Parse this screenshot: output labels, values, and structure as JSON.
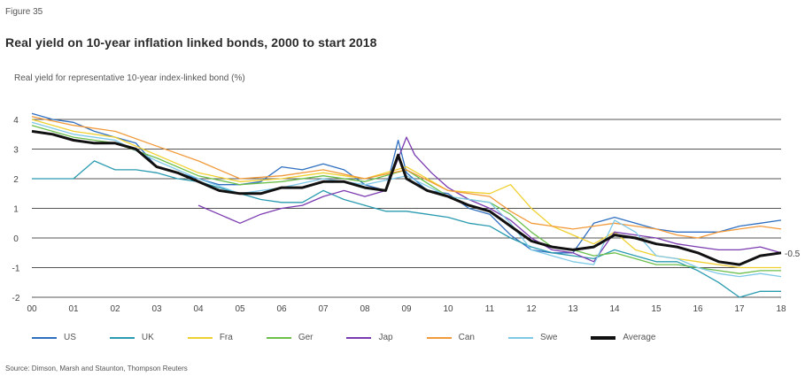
{
  "figure_label": "Figure 35",
  "source": "Source: Dimson, Marsh and Staunton, Thompson Reuters",
  "chart_data": {
    "type": "line",
    "title": "Real yield on 10-year inflation linked bonds, 2000 to start 2018",
    "ylabel": "Real yield for representative 10-year index-linked bond (%)",
    "xlabel": "",
    "xlim": [
      2000,
      2018
    ],
    "ylim": [
      -2,
      4
    ],
    "x_ticks": [
      "00",
      "01",
      "02",
      "03",
      "04",
      "05",
      "06",
      "07",
      "08",
      "09",
      "10",
      "11",
      "12",
      "13",
      "14",
      "15",
      "16",
      "17",
      "18"
    ],
    "y_ticks": [
      4,
      3,
      2,
      1,
      0,
      -1,
      -2
    ],
    "end_annotation": "-0.5",
    "grid": "horizontal",
    "legend_position": "bottom",
    "series": [
      {
        "name": "US",
        "color": "#2f6fc0",
        "x": [
          2000,
          2000.5,
          2001,
          2001.5,
          2002,
          2002.5,
          2003,
          2003.5,
          2004,
          2004.5,
          2005,
          2005.5,
          2006,
          2006.5,
          2007,
          2007.5,
          2008,
          2008.5,
          2008.8,
          2009,
          2009.5,
          2010,
          2010.5,
          2011,
          2011.5,
          2012,
          2012.5,
          2013,
          2013.5,
          2014,
          2014.5,
          2015,
          2015.5,
          2016,
          2016.5,
          2017,
          2017.5,
          2018
        ],
        "values": [
          4.2,
          4.0,
          3.9,
          3.6,
          3.4,
          3.2,
          2.4,
          2.2,
          2.0,
          1.8,
          1.8,
          1.9,
          2.4,
          2.3,
          2.5,
          2.3,
          1.8,
          1.6,
          3.3,
          2.2,
          1.6,
          1.5,
          1.0,
          0.8,
          0.1,
          -0.4,
          -0.5,
          -0.5,
          0.5,
          0.7,
          0.5,
          0.3,
          0.2,
          0.2,
          0.2,
          0.4,
          0.5,
          0.6
        ]
      },
      {
        "name": "UK",
        "color": "#2a9bb0",
        "x": [
          2000,
          2000.5,
          2001,
          2001.5,
          2002,
          2002.5,
          2003,
          2003.5,
          2004,
          2004.5,
          2005,
          2005.5,
          2006,
          2006.5,
          2007,
          2007.5,
          2008,
          2008.5,
          2009,
          2009.5,
          2010,
          2010.5,
          2011,
          2011.5,
          2012,
          2012.5,
          2013,
          2013.5,
          2014,
          2014.5,
          2015,
          2015.5,
          2016,
          2016.5,
          2017,
          2017.5,
          2018
        ],
        "values": [
          2.0,
          2.0,
          2.0,
          2.6,
          2.3,
          2.3,
          2.2,
          2.0,
          1.9,
          1.7,
          1.5,
          1.3,
          1.2,
          1.2,
          1.6,
          1.3,
          1.1,
          0.9,
          0.9,
          0.8,
          0.7,
          0.5,
          0.4,
          0.0,
          -0.3,
          -0.5,
          -0.6,
          -0.7,
          -0.4,
          -0.6,
          -0.8,
          -0.8,
          -1.1,
          -1.5,
          -2.0,
          -1.8,
          -1.8
        ]
      },
      {
        "name": "Fra",
        "color": "#f0d030",
        "x": [
          2000,
          2001,
          2002,
          2003,
          2004,
          2005,
          2006,
          2007,
          2008,
          2009,
          2010,
          2011,
          2011.5,
          2012,
          2012.5,
          2013,
          2013.5,
          2014,
          2014.5,
          2015,
          2015.5,
          2016,
          2016.5,
          2017,
          2017.5,
          2018
        ],
        "values": [
          4.0,
          3.6,
          3.4,
          2.8,
          2.2,
          1.9,
          2.0,
          2.2,
          2.0,
          2.4,
          1.6,
          1.5,
          1.8,
          1.0,
          0.4,
          0.1,
          -0.2,
          0.2,
          -0.4,
          -0.6,
          -0.7,
          -0.8,
          -0.9,
          -1.0,
          -1.0,
          -1.0
        ]
      },
      {
        "name": "Ger",
        "color": "#6cbf4a",
        "x": [
          2000,
          2001,
          2002,
          2003,
          2004,
          2005,
          2006,
          2007,
          2008,
          2009,
          2010,
          2011,
          2011.5,
          2012,
          2012.5,
          2013,
          2013.5,
          2014,
          2014.5,
          2015,
          2015.5,
          2016,
          2016.5,
          2017,
          2017.5,
          2018
        ],
        "values": [
          3.8,
          3.4,
          3.2,
          2.7,
          2.1,
          1.8,
          1.9,
          2.1,
          1.9,
          2.3,
          1.4,
          1.2,
          0.8,
          0.2,
          -0.3,
          -0.4,
          -0.6,
          -0.5,
          -0.7,
          -0.9,
          -0.9,
          -1.0,
          -1.1,
          -1.2,
          -1.1,
          -1.1
        ]
      },
      {
        "name": "Jap",
        "color": "#7b3bb0",
        "x": [
          2004,
          2004.5,
          2005,
          2005.5,
          2006,
          2006.5,
          2007,
          2007.5,
          2008,
          2008.5,
          2009,
          2009.2,
          2009.6,
          2010,
          2010.5,
          2011,
          2011.5,
          2012,
          2012.5,
          2013,
          2013.5,
          2014,
          2014.5,
          2015,
          2015.5,
          2016,
          2016.5,
          2017,
          2017.5,
          2018
        ],
        "values": [
          1.1,
          0.8,
          0.5,
          0.8,
          1.0,
          1.1,
          1.4,
          1.6,
          1.4,
          1.6,
          3.4,
          2.8,
          2.2,
          1.7,
          1.3,
          1.0,
          0.6,
          0.0,
          -0.4,
          -0.5,
          -0.8,
          0.2,
          0.1,
          0.0,
          -0.2,
          -0.3,
          -0.4,
          -0.4,
          -0.3,
          -0.5
        ]
      },
      {
        "name": "Can",
        "color": "#f29a3a",
        "x": [
          2000,
          2001,
          2002,
          2003,
          2004,
          2005,
          2006,
          2007,
          2008,
          2009,
          2010,
          2011,
          2011.5,
          2012,
          2012.5,
          2013,
          2013.5,
          2014,
          2014.5,
          2015,
          2015.5,
          2016,
          2016.5,
          2017,
          2017.5,
          2018
        ],
        "values": [
          4.1,
          3.8,
          3.6,
          3.1,
          2.6,
          2.0,
          2.1,
          2.3,
          2.0,
          2.3,
          1.6,
          1.4,
          0.9,
          0.5,
          0.4,
          0.3,
          0.4,
          0.5,
          0.4,
          0.3,
          0.1,
          0.0,
          0.2,
          0.3,
          0.4,
          0.3
        ]
      },
      {
        "name": "Swe",
        "color": "#7ec8e8",
        "x": [
          2000,
          2001,
          2002,
          2003,
          2004,
          2005,
          2006,
          2007,
          2008,
          2009,
          2010,
          2011,
          2011.5,
          2012,
          2012.5,
          2013,
          2013.5,
          2014,
          2014.5,
          2015,
          2015.5,
          2016,
          2016.5,
          2017,
          2017.5,
          2018
        ],
        "values": [
          3.9,
          3.5,
          3.3,
          2.6,
          2.0,
          1.5,
          1.7,
          2.0,
          1.8,
          2.1,
          1.4,
          1.2,
          0.5,
          -0.4,
          -0.6,
          -0.8,
          -0.9,
          0.6,
          0.2,
          -0.6,
          -0.7,
          -1.0,
          -1.2,
          -1.3,
          -1.2,
          -1.3
        ]
      },
      {
        "name": "Average",
        "color": "#111111",
        "thick": true,
        "x": [
          2000,
          2000.5,
          2001,
          2001.5,
          2002,
          2002.5,
          2003,
          2003.5,
          2004,
          2004.5,
          2005,
          2005.5,
          2006,
          2006.5,
          2007,
          2007.5,
          2008,
          2008.5,
          2008.8,
          2009,
          2009.5,
          2010,
          2010.5,
          2011,
          2011.5,
          2012,
          2012.5,
          2013,
          2013.5,
          2014,
          2014.5,
          2015,
          2015.5,
          2016,
          2016.5,
          2017,
          2017.5,
          2018
        ],
        "values": [
          3.6,
          3.5,
          3.3,
          3.2,
          3.2,
          3.0,
          2.4,
          2.2,
          1.9,
          1.6,
          1.5,
          1.5,
          1.7,
          1.7,
          1.9,
          1.9,
          1.7,
          1.6,
          2.8,
          2.0,
          1.6,
          1.4,
          1.1,
          0.9,
          0.4,
          -0.1,
          -0.3,
          -0.4,
          -0.3,
          0.1,
          0.0,
          -0.2,
          -0.3,
          -0.5,
          -0.8,
          -0.9,
          -0.6,
          -0.5
        ]
      }
    ]
  }
}
